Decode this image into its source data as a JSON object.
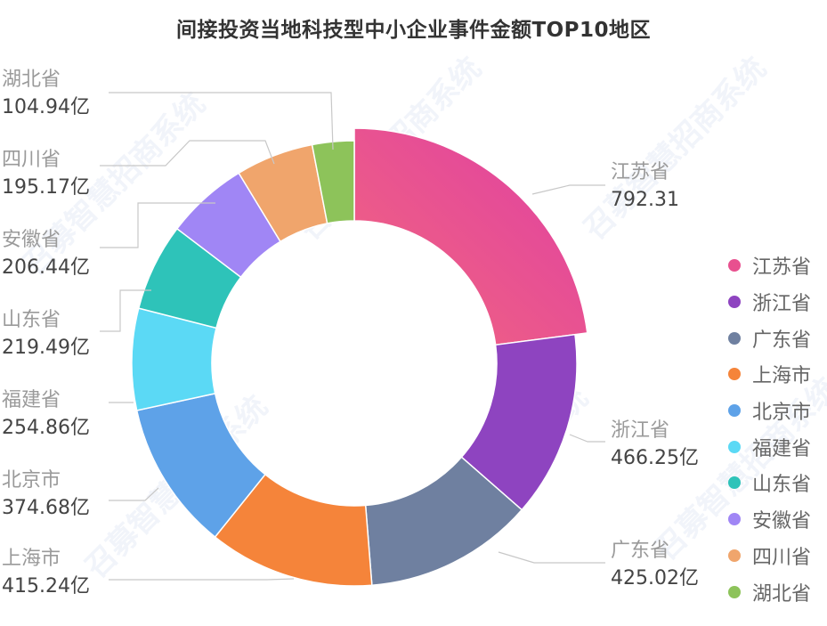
{
  "chart_data": {
    "type": "pie",
    "subtype": "donut",
    "title": "间接投资当地科技型中小企业事件金额TOP10地区",
    "unit": "亿",
    "categories": [
      "江苏省",
      "浙江省",
      "广东省",
      "上海市",
      "北京市",
      "福建省",
      "山东省",
      "安徽省",
      "四川省",
      "湖北省"
    ],
    "values": [
      792.31,
      466.25,
      425.02,
      415.24,
      374.68,
      254.86,
      219.49,
      206.44,
      195.17,
      104.94
    ],
    "labels": [
      "792.31",
      "466.25亿",
      "425.02亿",
      "415.24亿",
      "374.68亿",
      "254.86亿",
      "219.49亿",
      "206.44亿",
      "195.17亿",
      "104.94亿"
    ],
    "colors": [
      "#e8508f",
      "#8e44c0",
      "#6f80a0",
      "#f5843a",
      "#5ea2e8",
      "#5bd9f5",
      "#2ec3b9",
      "#a086f5",
      "#f0a56c",
      "#8dc35a"
    ],
    "highlighted": "江苏省",
    "legend_position": "right",
    "start_angle": "12 o'clock, clockwise"
  },
  "legend": {
    "items": [
      "江苏省",
      "浙江省",
      "广东省",
      "上海市",
      "北京市",
      "福建省",
      "山东省",
      "安徽省",
      "四川省",
      "湖北省"
    ]
  },
  "watermark": "召募智慧招商系统"
}
